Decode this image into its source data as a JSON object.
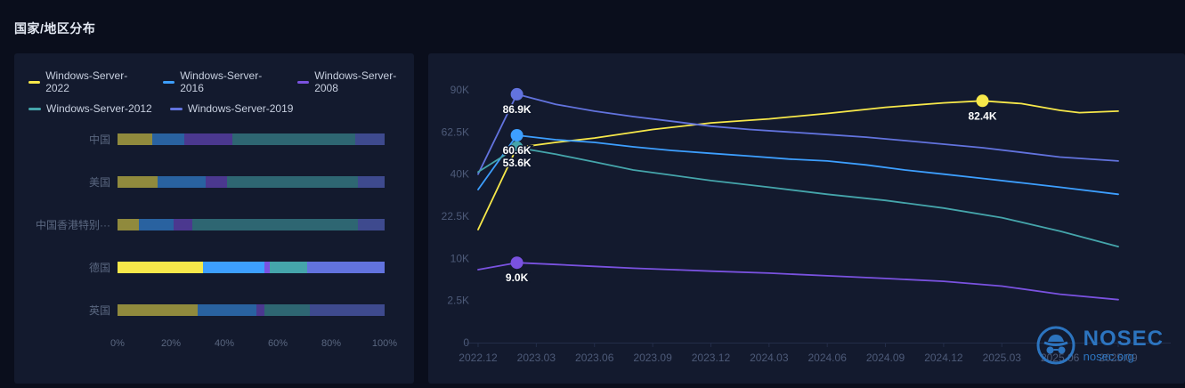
{
  "page": {
    "title": "国家/地区分布"
  },
  "watermark": {
    "brand": "NOSEC",
    "site": "nosec.org"
  },
  "legend": {
    "items": [
      {
        "label": "Windows-Server-2022",
        "color": "#f7e84a"
      },
      {
        "label": "Windows-Server-2016",
        "color": "#3d9fff"
      },
      {
        "label": "Windows-Server-2008",
        "color": "#7a52e0"
      },
      {
        "label": "Windows-Server-2012",
        "color": "#45a5ab"
      },
      {
        "label": "Windows-Server-2019",
        "color": "#6273de"
      }
    ]
  },
  "chart_data": [
    {
      "type": "bar",
      "orientation": "horizontal",
      "stacked": true,
      "unit": "%",
      "title": "国家/地区分布",
      "categories": [
        "中国",
        "美国",
        "中国香港特别···",
        "德国",
        "英国"
      ],
      "highlighted_category": "德国",
      "x_ticks": [
        "0%",
        "20%",
        "40%",
        "60%",
        "80%",
        "100%"
      ],
      "series": [
        {
          "name": "Windows-Server-2022",
          "color": "#f7e84a",
          "values": [
            13,
            15,
            8,
            32,
            30
          ]
        },
        {
          "name": "Windows-Server-2016",
          "color": "#3d9fff",
          "values": [
            12,
            18,
            13,
            23,
            22
          ]
        },
        {
          "name": "Windows-Server-2008",
          "color": "#7a52e0",
          "values": [
            18,
            8,
            7,
            2,
            3
          ]
        },
        {
          "name": "Windows-Server-2012",
          "color": "#45a5ab",
          "values": [
            46,
            49,
            62,
            14,
            17
          ]
        },
        {
          "name": "Windows-Server-2019",
          "color": "#6273de",
          "values": [
            11,
            10,
            10,
            29,
            28
          ]
        }
      ]
    },
    {
      "type": "line",
      "values_unit": "thousands (K)",
      "x_axis": {
        "note": "month index 0 = 2022.12, one unit = one month",
        "ticks": [
          "2022.12",
          "2023.03",
          "2023.06",
          "2023.09",
          "2023.12",
          "2024.03",
          "2024.06",
          "2024.09",
          "2024.12",
          "2025.03",
          "2025.06",
          "2025.09"
        ]
      },
      "y_axis": {
        "scale": "sqrt",
        "max_k": 90,
        "ticks": [
          {
            "value_k": 0,
            "label": "0"
          },
          {
            "value_k": 2.5,
            "label": "2.5K"
          },
          {
            "value_k": 10,
            "label": "10K"
          },
          {
            "value_k": 22.5,
            "label": "22.5K"
          },
          {
            "value_k": 40,
            "label": "40K"
          },
          {
            "value_k": 62.5,
            "label": "62.5K"
          },
          {
            "value_k": 90,
            "label": "90K"
          }
        ]
      },
      "series": [
        {
          "name": "Windows-Server-2022",
          "color": "#f7e84a",
          "points": [
            [
              0,
              18
            ],
            [
              2,
              53.6
            ],
            [
              4,
              56.5
            ],
            [
              6,
              59
            ],
            [
              9,
              64
            ],
            [
              12,
              68
            ],
            [
              15,
              70.5
            ],
            [
              18,
              74
            ],
            [
              21,
              78
            ],
            [
              24,
              81
            ],
            [
              26,
              82.4
            ],
            [
              28,
              80.5
            ],
            [
              30,
              76
            ],
            [
              31,
              74.5
            ],
            [
              33,
              75.5
            ]
          ]
        },
        {
          "name": "Windows-Server-2019",
          "color": "#6273de",
          "points": [
            [
              0,
              40
            ],
            [
              2,
              86.9
            ],
            [
              4,
              80
            ],
            [
              6,
              75.5
            ],
            [
              8,
              72
            ],
            [
              10,
              69
            ],
            [
              12,
              66
            ],
            [
              14,
              64
            ],
            [
              16,
              62.5
            ],
            [
              18,
              61
            ],
            [
              20,
              59.5
            ],
            [
              22,
              57.5
            ],
            [
              24,
              55.5
            ],
            [
              26,
              53.5
            ],
            [
              28,
              51
            ],
            [
              30,
              48.5
            ],
            [
              33,
              46.5
            ]
          ]
        },
        {
          "name": "Windows-Server-2016",
          "color": "#3d9fff",
          "points": [
            [
              0,
              33
            ],
            [
              2,
              60.6
            ],
            [
              4,
              58
            ],
            [
              6,
              56.5
            ],
            [
              8,
              54
            ],
            [
              10,
              52
            ],
            [
              12,
              50.5
            ],
            [
              14,
              49
            ],
            [
              16,
              47.5
            ],
            [
              18,
              46.5
            ],
            [
              20,
              44.5
            ],
            [
              22,
              42
            ],
            [
              24,
              40
            ],
            [
              26,
              38
            ],
            [
              28,
              36
            ],
            [
              30,
              34
            ],
            [
              33,
              31
            ]
          ]
        },
        {
          "name": "Windows-Server-2012",
          "color": "#45a5ab",
          "points": [
            [
              0,
              41
            ],
            [
              2,
              53.6
            ],
            [
              4,
              50
            ],
            [
              6,
              46
            ],
            [
              8,
              42
            ],
            [
              10,
              39.5
            ],
            [
              12,
              37
            ],
            [
              15,
              34
            ],
            [
              18,
              31
            ],
            [
              21,
              28.5
            ],
            [
              24,
              25.5
            ],
            [
              27,
              22
            ],
            [
              30,
              17.5
            ],
            [
              33,
              13
            ]
          ]
        },
        {
          "name": "Windows-Server-2008",
          "color": "#7a52e0",
          "points": [
            [
              0,
              7.5
            ],
            [
              2,
              9
            ],
            [
              4,
              8.6
            ],
            [
              6,
              8.2
            ],
            [
              8,
              7.8
            ],
            [
              10,
              7.5
            ],
            [
              12,
              7.2
            ],
            [
              15,
              6.8
            ],
            [
              18,
              6.3
            ],
            [
              21,
              5.8
            ],
            [
              24,
              5.3
            ],
            [
              27,
              4.5
            ],
            [
              30,
              3.3
            ],
            [
              33,
              2.6
            ]
          ]
        }
      ],
      "markers": [
        {
          "series": "Windows-Server-2019",
          "month": 2,
          "value_k": 86.9,
          "label": "86.9K"
        },
        {
          "series": "Windows-Server-2016",
          "month": 2,
          "value_k": 60.6,
          "label": "60.6K"
        },
        {
          "series": "Windows-Server-2012",
          "month": 2,
          "value_k": 53.6,
          "label": "53.6K"
        },
        {
          "series": "Windows-Server-2022",
          "month": 26,
          "value_k": 82.4,
          "label": "82.4K"
        },
        {
          "series": "Windows-Server-2008",
          "month": 2,
          "value_k": 9.0,
          "label": "9.0K"
        }
      ]
    }
  ]
}
